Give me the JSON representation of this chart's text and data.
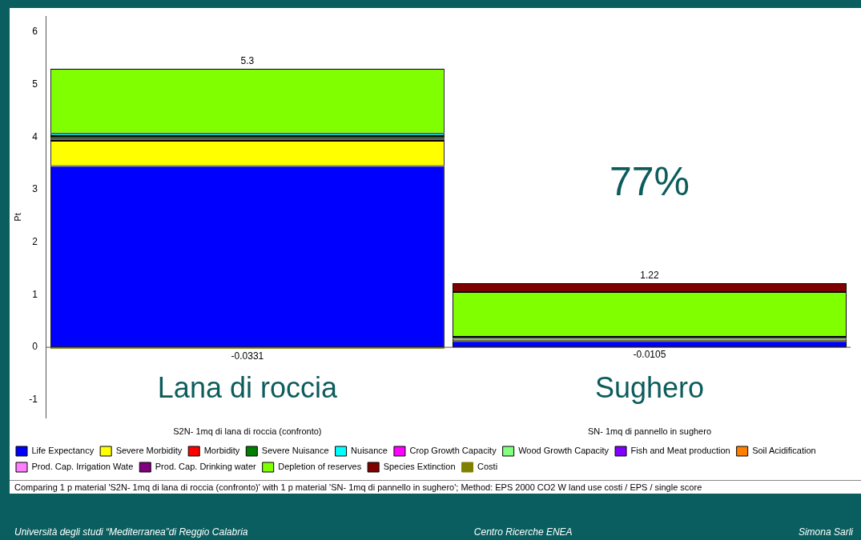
{
  "chart_data": {
    "type": "bar",
    "stacked": true,
    "ylabel": "Pt",
    "categories": [
      "S2N- 1mq di lana di roccia (confronto)",
      "SN- 1mq di pannello in sughero"
    ],
    "series": [
      {
        "name": "Life Expectancy",
        "color": "#0000ff",
        "values": [
          3.45,
          0.12
        ]
      },
      {
        "name": "Severe Morbidity",
        "color": "#ffff00",
        "values": [
          0.48,
          0.04
        ]
      },
      {
        "name": "Morbidity",
        "color": "#ff0000",
        "values": [
          0.04,
          0
        ]
      },
      {
        "name": "Severe Nuisance",
        "color": "#008000",
        "values": [
          0.05,
          0.04
        ]
      },
      {
        "name": "Nuisance",
        "color": "#00ffff",
        "values": [
          0.05,
          0
        ]
      },
      {
        "name": "Crop Growth Capacity",
        "color": "#ff00ff",
        "values": [
          0,
          0
        ]
      },
      {
        "name": "Wood Growth Capacity",
        "color": "#80ff80",
        "values": [
          0,
          0
        ]
      },
      {
        "name": "Fish and Meat production",
        "color": "#8000ff",
        "values": [
          0,
          0
        ]
      },
      {
        "name": "Soil Acidification",
        "color": "#ff8000",
        "values": [
          0,
          0
        ]
      },
      {
        "name": "Prod. Cap. Irrigation Wate",
        "color": "#ff80ff",
        "values": [
          0,
          0
        ]
      },
      {
        "name": "Prod. Cap. Drinking water",
        "color": "#800080",
        "values": [
          0,
          0
        ]
      },
      {
        "name": "Depletion of reserves",
        "color": "#80ff00",
        "values": [
          1.23,
          0.85
        ]
      },
      {
        "name": "Species Extinction",
        "color": "#800000",
        "values": [
          0,
          0.17
        ]
      },
      {
        "name": "Costi",
        "color": "#808000",
        "values": [
          -0.0331,
          -0.0105
        ],
        "value_labels": [
          "-0.0331",
          "-0.0105"
        ]
      }
    ],
    "totals": [
      "5.3",
      "1.22"
    ],
    "ylim": [
      -1.35,
      6.3
    ],
    "yticks": [
      -1,
      0,
      1,
      2,
      3,
      4,
      5,
      6
    ],
    "grid": false,
    "ref_lines": [
      {
        "axis": "y",
        "value": 0,
        "color": "#555555"
      }
    ],
    "legend": "bottom",
    "annotations": [
      "77%",
      "Lana di roccia",
      "Sughero",
      "Comparing 1 p material 'S2N- 1mq di lana di roccia (confronto)' with 1 p material 'SN- 1mq di pannello in sughero';  Method: EPS 2000 CO2 W land use costi /  EPS / single score",
      "Università degli studi “Mediterranea”di Reggio Calabria",
      "Centro Ricerche ENEA",
      "Simona Sarli"
    ]
  }
}
